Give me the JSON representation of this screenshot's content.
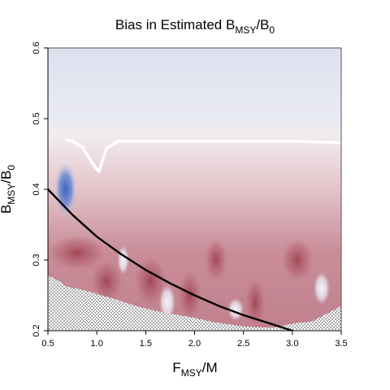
{
  "chart_data": {
    "type": "heatmap",
    "title": {
      "prefix": "Bias in Estimated B",
      "sub1": "MSY",
      "mid": "/B",
      "sub2": "0"
    },
    "xlabel": {
      "main": "F",
      "sub": "MSY",
      "rest": "/M"
    },
    "ylabel": {
      "main": "B",
      "sub": "MSY",
      "mid": "/B",
      "sub2": "0"
    },
    "xlim": [
      0.5,
      3.5
    ],
    "ylim": [
      0.2,
      0.6
    ],
    "x_ticks": [
      {
        "value": 0.5,
        "label": "0.5"
      },
      {
        "value": 1.0,
        "label": "1.0"
      },
      {
        "value": 1.5,
        "label": "1.5"
      },
      {
        "value": 2.0,
        "label": "2.0"
      },
      {
        "value": 2.5,
        "label": "2.5"
      },
      {
        "value": 3.0,
        "label": "3.0"
      },
      {
        "value": 3.5,
        "label": "3.5"
      }
    ],
    "y_ticks": [
      {
        "value": 0.2,
        "label": "0.2"
      },
      {
        "value": 0.3,
        "label": "0.3"
      },
      {
        "value": 0.4,
        "label": "0.4"
      },
      {
        "value": 0.5,
        "label": "0.5"
      },
      {
        "value": 0.6,
        "label": "0.6"
      }
    ],
    "curve": {
      "x": [
        0.5,
        0.75,
        1.0,
        1.25,
        1.5,
        1.75,
        2.0,
        2.25,
        2.5,
        2.75,
        3.0
      ],
      "y": [
        0.4,
        0.364,
        0.333,
        0.308,
        0.286,
        0.267,
        0.25,
        0.235,
        0.222,
        0.211,
        0.2
      ]
    },
    "excluded_region_boundary": {
      "x": [
        0.5,
        0.58,
        0.7,
        0.85,
        1.0,
        1.2,
        1.4,
        1.6,
        1.8,
        2.0,
        2.2,
        2.5,
        2.8,
        3.0,
        3.2,
        3.5
      ],
      "y": [
        0.278,
        0.273,
        0.262,
        0.258,
        0.252,
        0.244,
        0.235,
        0.228,
        0.223,
        0.218,
        0.212,
        0.206,
        0.204,
        0.21,
        0.213,
        0.235
      ]
    },
    "contour_white": {
      "x": [
        0.68,
        0.75,
        0.85,
        0.95,
        1.02,
        1.1,
        1.22,
        1.5,
        2.0,
        2.5,
        3.0,
        3.5
      ],
      "y": [
        0.47,
        0.468,
        0.46,
        0.438,
        0.425,
        0.458,
        0.468,
        0.468,
        0.468,
        0.468,
        0.468,
        0.466
      ]
    },
    "grid": false,
    "colors": {
      "positive_bias": "#3a65c4",
      "negative_bias": "#9b3a4a",
      "near_zero": "#f4f4f8",
      "curve": "#000000",
      "stipple": "#000000"
    }
  }
}
